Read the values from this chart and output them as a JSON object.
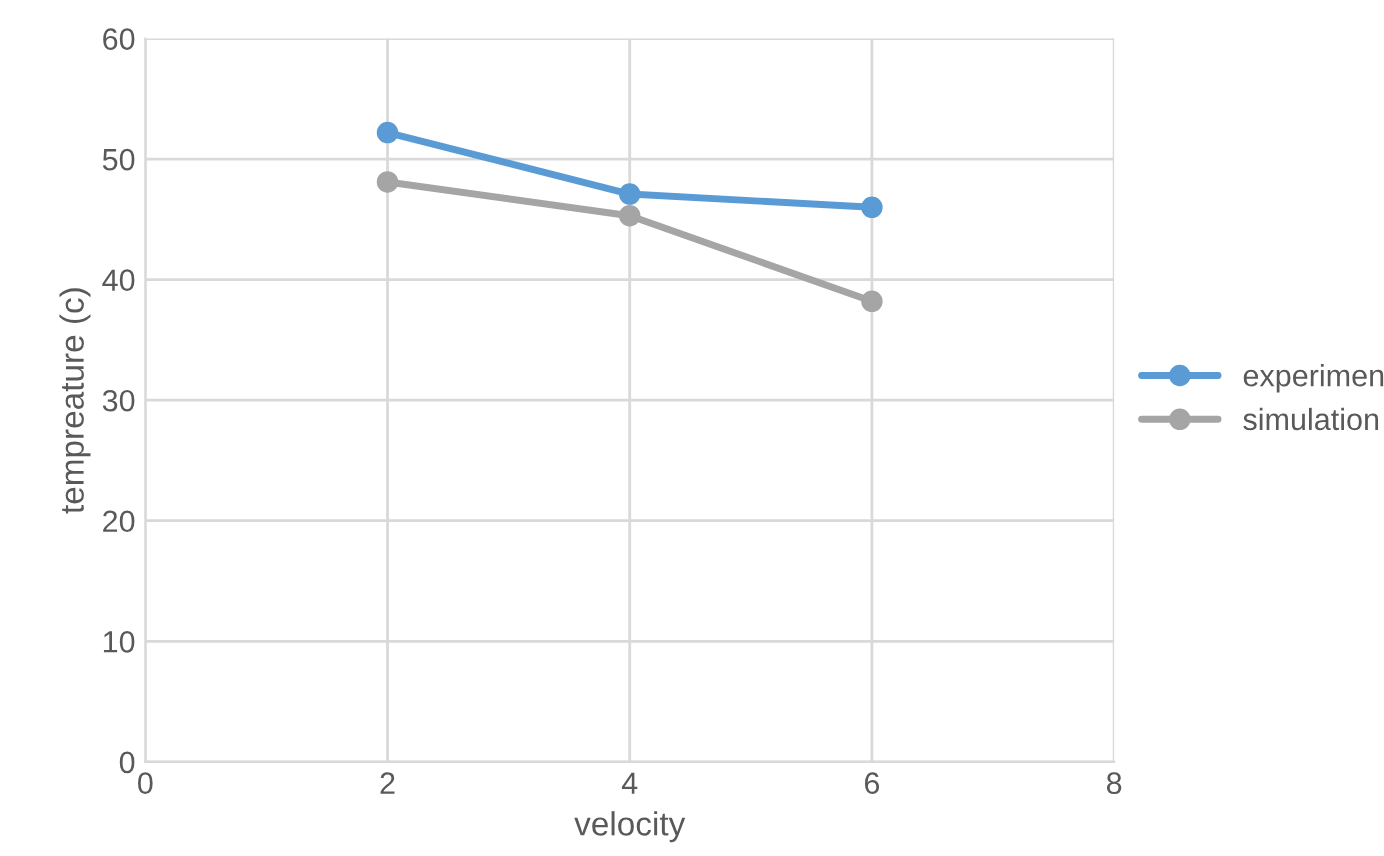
{
  "chart_data": {
    "type": "line",
    "xlabel": "velocity",
    "ylabel": "tempreature (c)",
    "x": [
      2,
      4,
      6
    ],
    "series": [
      {
        "name": "experimen",
        "color": "#5b9bd5",
        "values": [
          52.2,
          47.1,
          46.0
        ]
      },
      {
        "name": "simulation",
        "color": "#a5a5a5",
        "values": [
          48.1,
          45.3,
          38.2
        ]
      }
    ],
    "xlim": [
      0,
      8
    ],
    "xticks": [
      0,
      2,
      4,
      6,
      8
    ],
    "ylim": [
      0,
      60
    ],
    "yticks": [
      0,
      10,
      20,
      30,
      40,
      50,
      60
    ],
    "grid": true,
    "legend": "right",
    "marker": "circle",
    "line_style": "solid"
  }
}
